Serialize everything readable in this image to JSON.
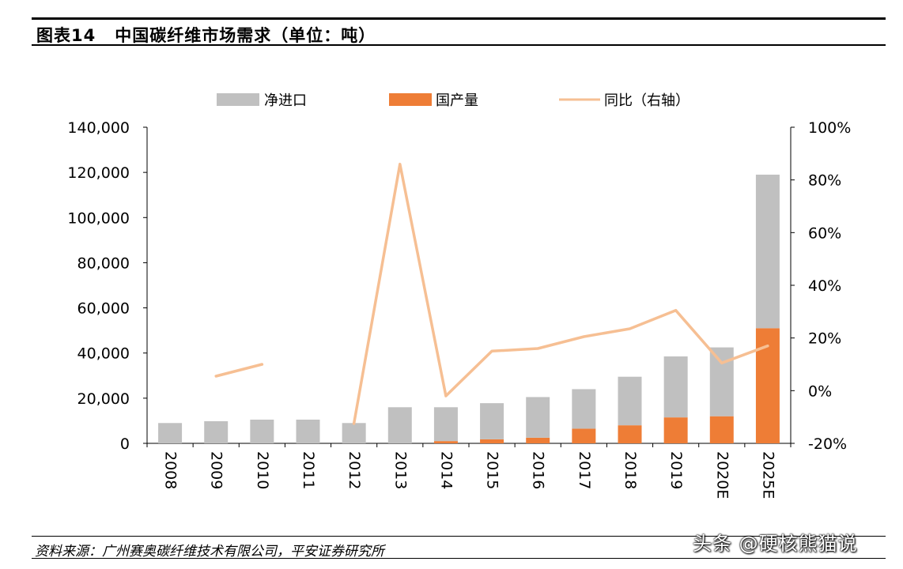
{
  "header": {
    "fig_num": "图表14",
    "title": "中国碳纤维市场需求（单位：吨）"
  },
  "footer": {
    "source": "资料来源：广州赛奥碳纤维技术有限公司，平安证券研究所",
    "watermark": "头条 @硬核熊猫说"
  },
  "colors": {
    "import": "#c0c0c0",
    "production": "#ee7d36",
    "yoy": "#f6bf93"
  },
  "chart_data": {
    "type": "bar",
    "stacked": true,
    "title": "中国碳纤维市场需求（单位：吨）",
    "categories": [
      "2008",
      "2009",
      "2010",
      "2011",
      "2012",
      "2013",
      "2014",
      "2015",
      "2016",
      "2017",
      "2018",
      "2019",
      "2020E",
      "2025E"
    ],
    "series": [
      {
        "name": "国产量",
        "type": "bar",
        "axis": "left",
        "values": [
          0,
          0,
          0,
          0,
          0,
          0,
          1000,
          1800,
          2500,
          6500,
          8000,
          11500,
          12000,
          51000
        ]
      },
      {
        "name": "净进口",
        "type": "bar",
        "axis": "left",
        "values": [
          9000,
          9800,
          10500,
          10500,
          9000,
          16000,
          15000,
          16000,
          18000,
          17500,
          21500,
          27000,
          30500,
          68000
        ]
      },
      {
        "name": "同比（右轴）",
        "type": "line",
        "axis": "right",
        "values": [
          null,
          5.5,
          10,
          null,
          -12.5,
          86,
          -2,
          15,
          16,
          20.5,
          23.5,
          30.5,
          10.5,
          17
        ]
      }
    ],
    "y_left": {
      "range": [
        0,
        140000
      ],
      "ticks": [
        "0",
        "20,000",
        "40,000",
        "60,000",
        "80,000",
        "100,000",
        "120,000",
        "140,000"
      ]
    },
    "y_right": {
      "range": [
        -20,
        100
      ],
      "ticks": [
        "-20%",
        "0%",
        "20%",
        "40%",
        "60%",
        "80%",
        "100%"
      ]
    },
    "legend": {
      "position": "top-center",
      "labels": [
        "净进口",
        "国产量",
        "同比（右轴）"
      ]
    }
  }
}
